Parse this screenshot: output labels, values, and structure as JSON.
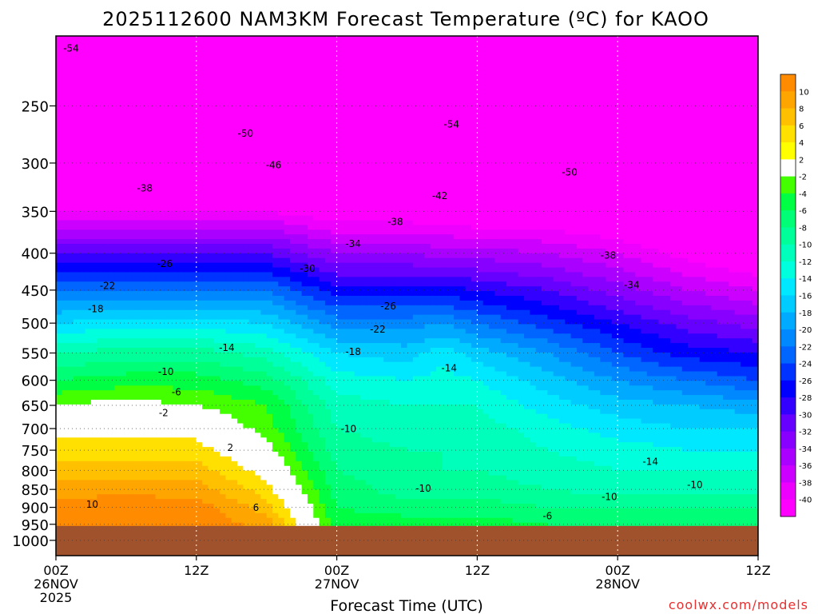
{
  "chart_data": {
    "type": "heatmap",
    "title": "2025112600 NAM3KM Forecast Temperature (ºC) for KAOO",
    "xlabel": "Forecast Time (UTC)",
    "ylabel": "",
    "watermark": "coolwx.com/models",
    "x_ticks": [
      {
        "hour": 0,
        "line1": "00Z",
        "line2": "26NOV",
        "line3": "2025"
      },
      {
        "hour": 12,
        "line1": "12Z",
        "line2": "",
        "line3": ""
      },
      {
        "hour": 24,
        "line1": "00Z",
        "line2": "27NOV",
        "line3": ""
      },
      {
        "hour": 36,
        "line1": "12Z",
        "line2": "",
        "line3": ""
      },
      {
        "hour": 48,
        "line1": "00Z",
        "line2": "28NOV",
        "line3": ""
      },
      {
        "hour": 60,
        "line1": "12Z",
        "line2": "",
        "line3": ""
      }
    ],
    "xlim_hours": [
      0,
      60
    ],
    "y_ticks": [
      250,
      300,
      350,
      400,
      450,
      500,
      550,
      600,
      650,
      700,
      750,
      800,
      850,
      900,
      950,
      1000
    ],
    "ylim_hpa": [
      200,
      1050
    ],
    "y_scale": "log",
    "y_reversed": true,
    "grid": true,
    "surface_pressure_hpa": 955,
    "surface_color": "#A0522D",
    "legend_placement": "right",
    "colorbar": {
      "labels": [
        "10",
        "8",
        "6",
        "4",
        "2",
        "-2",
        "-4",
        "-6",
        "-8",
        "-10",
        "-12",
        "-14",
        "-16",
        "-18",
        "-20",
        "-22",
        "-24",
        "-26",
        "-28",
        "-30",
        "-32",
        "-34",
        "-36",
        "-38",
        "-40"
      ],
      "colors": [
        "#FF8C00",
        "#FFA500",
        "#FFC000",
        "#FFE000",
        "#FFFF00",
        "#FFFFFF",
        "#44FF00",
        "#00FF44",
        "#00FF77",
        "#00FF99",
        "#00FFBB",
        "#00FFDD",
        "#00E8FF",
        "#00CCFF",
        "#00AAFF",
        "#0088FF",
        "#0066FF",
        "#0033FF",
        "#0000FF",
        "#3300FF",
        "#6600FF",
        "#8800FF",
        "#AA00FF",
        "#CC00FF",
        "#EE00FF",
        "#FF00FF"
      ]
    },
    "profiles": [
      {
        "hour": 0,
        "points": [
          [
            225,
            -54
          ],
          [
            300,
            -46
          ],
          [
            350,
            -40
          ],
          [
            400,
            -30
          ],
          [
            450,
            -22
          ],
          [
            500,
            -16
          ],
          [
            550,
            -10
          ],
          [
            600,
            -6
          ],
          [
            650,
            -2
          ],
          [
            700,
            1
          ],
          [
            750,
            3
          ],
          [
            800,
            5
          ],
          [
            850,
            7
          ],
          [
            900,
            9
          ],
          [
            950,
            10
          ]
        ]
      },
      {
        "hour": 6,
        "points": [
          [
            225,
            -54
          ],
          [
            300,
            -46
          ],
          [
            350,
            -40
          ],
          [
            400,
            -30
          ],
          [
            450,
            -22
          ],
          [
            500,
            -15
          ],
          [
            550,
            -9
          ],
          [
            600,
            -5
          ],
          [
            650,
            -1
          ],
          [
            700,
            1
          ],
          [
            750,
            3
          ],
          [
            800,
            5
          ],
          [
            850,
            7
          ],
          [
            900,
            10
          ],
          [
            950,
            11
          ]
        ]
      },
      {
        "hour": 12,
        "points": [
          [
            225,
            -54
          ],
          [
            300,
            -47
          ],
          [
            350,
            -40
          ],
          [
            400,
            -30
          ],
          [
            450,
            -22
          ],
          [
            500,
            -15
          ],
          [
            550,
            -9
          ],
          [
            600,
            -5
          ],
          [
            650,
            -2
          ],
          [
            700,
            1
          ],
          [
            750,
            3
          ],
          [
            800,
            5
          ],
          [
            850,
            7
          ],
          [
            900,
            9
          ],
          [
            950,
            10
          ]
        ]
      },
      {
        "hour": 18,
        "points": [
          [
            225,
            -54
          ],
          [
            300,
            -47
          ],
          [
            350,
            -40
          ],
          [
            400,
            -30
          ],
          [
            450,
            -22
          ],
          [
            500,
            -16
          ],
          [
            550,
            -11
          ],
          [
            600,
            -7
          ],
          [
            650,
            -4
          ],
          [
            700,
            -3
          ],
          [
            750,
            -1
          ],
          [
            800,
            1
          ],
          [
            850,
            3
          ],
          [
            900,
            5
          ],
          [
            950,
            7
          ]
        ]
      },
      {
        "hour": 24,
        "points": [
          [
            225,
            -55
          ],
          [
            300,
            -48
          ],
          [
            350,
            -42
          ],
          [
            400,
            -34
          ],
          [
            450,
            -27
          ],
          [
            500,
            -21
          ],
          [
            550,
            -16
          ],
          [
            600,
            -13
          ],
          [
            650,
            -11
          ],
          [
            700,
            -10
          ],
          [
            750,
            -9
          ],
          [
            800,
            -8
          ],
          [
            850,
            -7
          ],
          [
            900,
            -6
          ],
          [
            950,
            -5
          ]
        ]
      },
      {
        "hour": 30,
        "points": [
          [
            225,
            -55
          ],
          [
            300,
            -49
          ],
          [
            350,
            -42
          ],
          [
            400,
            -34
          ],
          [
            450,
            -27
          ],
          [
            500,
            -21
          ],
          [
            550,
            -17
          ],
          [
            600,
            -14
          ],
          [
            650,
            -12
          ],
          [
            700,
            -11
          ],
          [
            750,
            -10
          ],
          [
            800,
            -9
          ],
          [
            850,
            -9
          ],
          [
            900,
            -7
          ],
          [
            950,
            -5
          ]
        ]
      },
      {
        "hour": 33,
        "points": [
          [
            225,
            -55
          ],
          [
            300,
            -50
          ],
          [
            350,
            -42
          ],
          [
            400,
            -35
          ],
          [
            450,
            -27
          ],
          [
            500,
            -20
          ],
          [
            550,
            -15
          ],
          [
            600,
            -13
          ],
          [
            650,
            -12
          ],
          [
            700,
            -11
          ],
          [
            750,
            -10
          ],
          [
            800,
            -10
          ],
          [
            850,
            -9
          ],
          [
            900,
            -7
          ],
          [
            950,
            -5
          ]
        ]
      },
      {
        "hour": 36,
        "points": [
          [
            225,
            -55
          ],
          [
            300,
            -50
          ],
          [
            350,
            -43
          ],
          [
            400,
            -35
          ],
          [
            450,
            -28
          ],
          [
            500,
            -22
          ],
          [
            550,
            -17
          ],
          [
            600,
            -14
          ],
          [
            650,
            -12
          ],
          [
            700,
            -11
          ],
          [
            750,
            -10
          ],
          [
            800,
            -10
          ],
          [
            850,
            -9
          ],
          [
            900,
            -7
          ],
          [
            950,
            -5
          ]
        ]
      },
      {
        "hour": 42,
        "points": [
          [
            225,
            -55
          ],
          [
            300,
            -50
          ],
          [
            350,
            -43
          ],
          [
            400,
            -36
          ],
          [
            450,
            -30
          ],
          [
            500,
            -25
          ],
          [
            550,
            -20
          ],
          [
            600,
            -17
          ],
          [
            650,
            -15
          ],
          [
            700,
            -13
          ],
          [
            750,
            -12
          ],
          [
            800,
            -11
          ],
          [
            850,
            -10
          ],
          [
            900,
            -8
          ],
          [
            950,
            -6
          ]
        ]
      },
      {
        "hour": 48,
        "points": [
          [
            225,
            -55
          ],
          [
            300,
            -51
          ],
          [
            350,
            -44
          ],
          [
            400,
            -38
          ],
          [
            450,
            -33
          ],
          [
            500,
            -28
          ],
          [
            550,
            -24
          ],
          [
            600,
            -20
          ],
          [
            650,
            -17
          ],
          [
            700,
            -15
          ],
          [
            750,
            -13
          ],
          [
            800,
            -12
          ],
          [
            850,
            -11
          ],
          [
            900,
            -8
          ],
          [
            950,
            -6
          ]
        ]
      },
      {
        "hour": 54,
        "points": [
          [
            225,
            -55
          ],
          [
            300,
            -52
          ],
          [
            350,
            -47
          ],
          [
            400,
            -41
          ],
          [
            450,
            -36
          ],
          [
            500,
            -31
          ],
          [
            550,
            -27
          ],
          [
            600,
            -22
          ],
          [
            650,
            -18
          ],
          [
            700,
            -16
          ],
          [
            750,
            -14
          ],
          [
            800,
            -12
          ],
          [
            850,
            -11
          ],
          [
            900,
            -8
          ],
          [
            950,
            -6
          ]
        ]
      },
      {
        "hour": 60,
        "points": [
          [
            225,
            -55
          ],
          [
            300,
            -53
          ],
          [
            350,
            -49
          ],
          [
            400,
            -43
          ],
          [
            450,
            -38
          ],
          [
            500,
            -33
          ],
          [
            550,
            -28
          ],
          [
            600,
            -24
          ],
          [
            650,
            -19
          ],
          [
            700,
            -16
          ],
          [
            750,
            -14
          ],
          [
            800,
            -12
          ],
          [
            850,
            -11
          ],
          [
            900,
            -8
          ],
          [
            950,
            -6
          ]
        ]
      }
    ],
    "contour_labels": [
      {
        "text": "-54",
        "hour": 1.3,
        "hpa": 208
      },
      {
        "text": "-50",
        "hour": 16.2,
        "hpa": 273
      },
      {
        "text": "-54",
        "hour": 33.8,
        "hpa": 265
      },
      {
        "text": "-46",
        "hour": 18.6,
        "hpa": 302
      },
      {
        "text": "-50",
        "hour": 43.9,
        "hpa": 309
      },
      {
        "text": "-42",
        "hour": 32.8,
        "hpa": 333
      },
      {
        "text": "-38",
        "hour": 7.6,
        "hpa": 325
      },
      {
        "text": "-38",
        "hour": 29.0,
        "hpa": 362
      },
      {
        "text": "-34",
        "hour": 25.4,
        "hpa": 388
      },
      {
        "text": "-38",
        "hour": 47.2,
        "hpa": 403
      },
      {
        "text": "-30",
        "hour": 21.5,
        "hpa": 420
      },
      {
        "text": "-34",
        "hour": 49.2,
        "hpa": 443
      },
      {
        "text": "-26",
        "hour": 9.3,
        "hpa": 414
      },
      {
        "text": "-22",
        "hour": 4.4,
        "hpa": 444
      },
      {
        "text": "-26",
        "hour": 28.4,
        "hpa": 474
      },
      {
        "text": "-18",
        "hour": 3.4,
        "hpa": 478
      },
      {
        "text": "-22",
        "hour": 27.5,
        "hpa": 510
      },
      {
        "text": "-14",
        "hour": 14.6,
        "hpa": 541
      },
      {
        "text": "-18",
        "hour": 25.4,
        "hpa": 548
      },
      {
        "text": "-14",
        "hour": 33.6,
        "hpa": 577
      },
      {
        "text": "-10",
        "hour": 9.4,
        "hpa": 584
      },
      {
        "text": "-6",
        "hour": 10.3,
        "hpa": 623
      },
      {
        "text": "-2",
        "hour": 9.2,
        "hpa": 666
      },
      {
        "text": "-10",
        "hour": 25.0,
        "hpa": 701
      },
      {
        "text": "2",
        "hour": 14.9,
        "hpa": 744
      },
      {
        "text": "-14",
        "hour": 50.8,
        "hpa": 778
      },
      {
        "text": "-10",
        "hour": 31.4,
        "hpa": 847
      },
      {
        "text": "-10",
        "hour": 54.6,
        "hpa": 838
      },
      {
        "text": "-10",
        "hour": 47.3,
        "hpa": 870
      },
      {
        "text": "10",
        "hour": 3.1,
        "hpa": 892
      },
      {
        "text": "6",
        "hour": 17.1,
        "hpa": 901
      },
      {
        "text": "-6",
        "hour": 42.0,
        "hpa": 925
      }
    ]
  }
}
